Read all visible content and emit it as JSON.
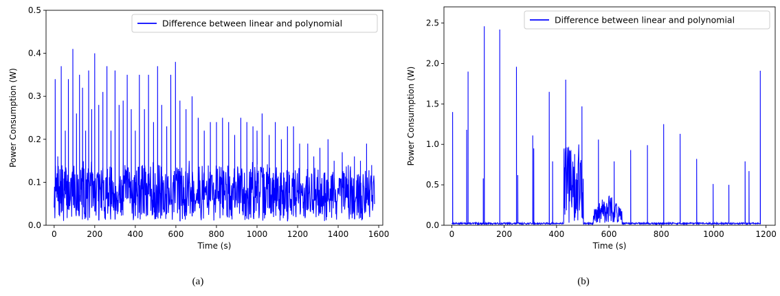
{
  "captions": [
    "(a)",
    "(b)"
  ],
  "chart_data": [
    {
      "type": "line",
      "xlabel": "Time (s)",
      "ylabel": "Power Consumption (W)",
      "xlim": [
        -40,
        1620
      ],
      "ylim": [
        0,
        0.5
      ],
      "xticks": [
        0,
        200,
        400,
        600,
        800,
        1000,
        1200,
        1400,
        1600
      ],
      "yticks": [
        0.0,
        0.1,
        0.2,
        0.3,
        0.4,
        0.5
      ],
      "legend_position": "top-right",
      "series": [
        {
          "name": "Difference between linear and polynomial",
          "color": "#0000ff",
          "t_max": 1580,
          "base_low": 0.01,
          "base_high": 0.14,
          "peaks": [
            {
              "x": 5,
              "y": 0.34
            },
            {
              "x": 18,
              "y": 0.16
            },
            {
              "x": 35,
              "y": 0.37
            },
            {
              "x": 55,
              "y": 0.22
            },
            {
              "x": 70,
              "y": 0.34
            },
            {
              "x": 92,
              "y": 0.41
            },
            {
              "x": 110,
              "y": 0.26
            },
            {
              "x": 125,
              "y": 0.35
            },
            {
              "x": 140,
              "y": 0.32
            },
            {
              "x": 155,
              "y": 0.22
            },
            {
              "x": 170,
              "y": 0.36
            },
            {
              "x": 185,
              "y": 0.27
            },
            {
              "x": 200,
              "y": 0.4
            },
            {
              "x": 220,
              "y": 0.28
            },
            {
              "x": 240,
              "y": 0.31
            },
            {
              "x": 260,
              "y": 0.37
            },
            {
              "x": 280,
              "y": 0.22
            },
            {
              "x": 300,
              "y": 0.36
            },
            {
              "x": 320,
              "y": 0.28
            },
            {
              "x": 340,
              "y": 0.29
            },
            {
              "x": 360,
              "y": 0.35
            },
            {
              "x": 380,
              "y": 0.27
            },
            {
              "x": 400,
              "y": 0.22
            },
            {
              "x": 420,
              "y": 0.35
            },
            {
              "x": 445,
              "y": 0.27
            },
            {
              "x": 465,
              "y": 0.35
            },
            {
              "x": 490,
              "y": 0.24
            },
            {
              "x": 510,
              "y": 0.37
            },
            {
              "x": 530,
              "y": 0.28
            },
            {
              "x": 555,
              "y": 0.23
            },
            {
              "x": 575,
              "y": 0.35
            },
            {
              "x": 598,
              "y": 0.38
            },
            {
              "x": 620,
              "y": 0.29
            },
            {
              "x": 650,
              "y": 0.27
            },
            {
              "x": 680,
              "y": 0.3
            },
            {
              "x": 710,
              "y": 0.25
            },
            {
              "x": 740,
              "y": 0.22
            },
            {
              "x": 770,
              "y": 0.24
            },
            {
              "x": 800,
              "y": 0.24
            },
            {
              "x": 830,
              "y": 0.25
            },
            {
              "x": 860,
              "y": 0.24
            },
            {
              "x": 890,
              "y": 0.21
            },
            {
              "x": 920,
              "y": 0.25
            },
            {
              "x": 950,
              "y": 0.24
            },
            {
              "x": 980,
              "y": 0.23
            },
            {
              "x": 1000,
              "y": 0.22
            },
            {
              "x": 1025,
              "y": 0.26
            },
            {
              "x": 1060,
              "y": 0.21
            },
            {
              "x": 1090,
              "y": 0.24
            },
            {
              "x": 1120,
              "y": 0.2
            },
            {
              "x": 1150,
              "y": 0.23
            },
            {
              "x": 1180,
              "y": 0.23
            },
            {
              "x": 1210,
              "y": 0.19
            },
            {
              "x": 1250,
              "y": 0.19
            },
            {
              "x": 1280,
              "y": 0.16
            },
            {
              "x": 1310,
              "y": 0.18
            },
            {
              "x": 1350,
              "y": 0.2
            },
            {
              "x": 1380,
              "y": 0.15
            },
            {
              "x": 1420,
              "y": 0.17
            },
            {
              "x": 1450,
              "y": 0.14
            },
            {
              "x": 1480,
              "y": 0.16
            },
            {
              "x": 1510,
              "y": 0.15
            },
            {
              "x": 1540,
              "y": 0.19
            },
            {
              "x": 1565,
              "y": 0.14
            }
          ]
        }
      ]
    },
    {
      "type": "line",
      "xlabel": "Time (s)",
      "ylabel": "Power Consumption (W)",
      "xlim": [
        -30,
        1235
      ],
      "ylim": [
        0,
        2.7
      ],
      "xticks": [
        0,
        200,
        400,
        600,
        800,
        1000,
        1200
      ],
      "yticks": [
        0.0,
        0.5,
        1.0,
        1.5,
        2.0,
        2.5
      ],
      "legend_position": "top-right",
      "series": [
        {
          "name": "Difference between linear and polynomial",
          "color": "#0000ff",
          "t_max": 1180,
          "base_low": 0.0,
          "base_high": 0.04,
          "peaks": [
            {
              "x": 3,
              "y": 1.4
            },
            {
              "x": 57,
              "y": 1.18
            },
            {
              "x": 62,
              "y": 1.9
            },
            {
              "x": 120,
              "y": 0.58
            },
            {
              "x": 124,
              "y": 2.46
            },
            {
              "x": 183,
              "y": 2.42
            },
            {
              "x": 247,
              "y": 1.96
            },
            {
              "x": 252,
              "y": 0.62
            },
            {
              "x": 309,
              "y": 1.11
            },
            {
              "x": 313,
              "y": 0.95
            },
            {
              "x": 372,
              "y": 1.65
            },
            {
              "x": 385,
              "y": 0.79
            },
            {
              "x": 435,
              "y": 1.8
            },
            {
              "x": 497,
              "y": 1.47
            },
            {
              "x": 560,
              "y": 1.06
            },
            {
              "x": 620,
              "y": 0.79
            },
            {
              "x": 683,
              "y": 0.93
            },
            {
              "x": 747,
              "y": 0.99
            },
            {
              "x": 809,
              "y": 1.25
            },
            {
              "x": 872,
              "y": 1.13
            },
            {
              "x": 935,
              "y": 0.82
            },
            {
              "x": 998,
              "y": 0.51
            },
            {
              "x": 1058,
              "y": 0.5
            },
            {
              "x": 1120,
              "y": 0.79
            },
            {
              "x": 1135,
              "y": 0.67
            },
            {
              "x": 1178,
              "y": 1.91
            }
          ],
          "dense_regions": [
            {
              "x_start": 428,
              "x_end": 502,
              "low": 0.0,
              "high": 1.0
            },
            {
              "x_start": 540,
              "x_end": 650,
              "low": 0.03,
              "high": 0.42
            }
          ]
        }
      ]
    }
  ]
}
